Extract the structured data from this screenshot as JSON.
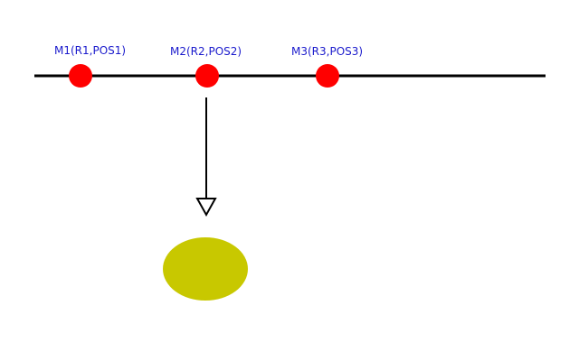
{
  "diagram": {
    "colors": {
      "line": "#000000",
      "marker": "#ff0000",
      "marker_label": "#1a1acc",
      "target": "#c8c800",
      "background": "#ffffff"
    },
    "markers": [
      {
        "id": "m1",
        "label": "M1(R1,POS1)"
      },
      {
        "id": "m2",
        "label": "M2(R2,POS2)"
      },
      {
        "id": "m3",
        "label": "M3(R3,POS3)"
      }
    ],
    "arrow": {
      "from": "m2",
      "to": "target",
      "head": "open-triangle"
    },
    "target": {
      "shape": "ellipse"
    }
  }
}
